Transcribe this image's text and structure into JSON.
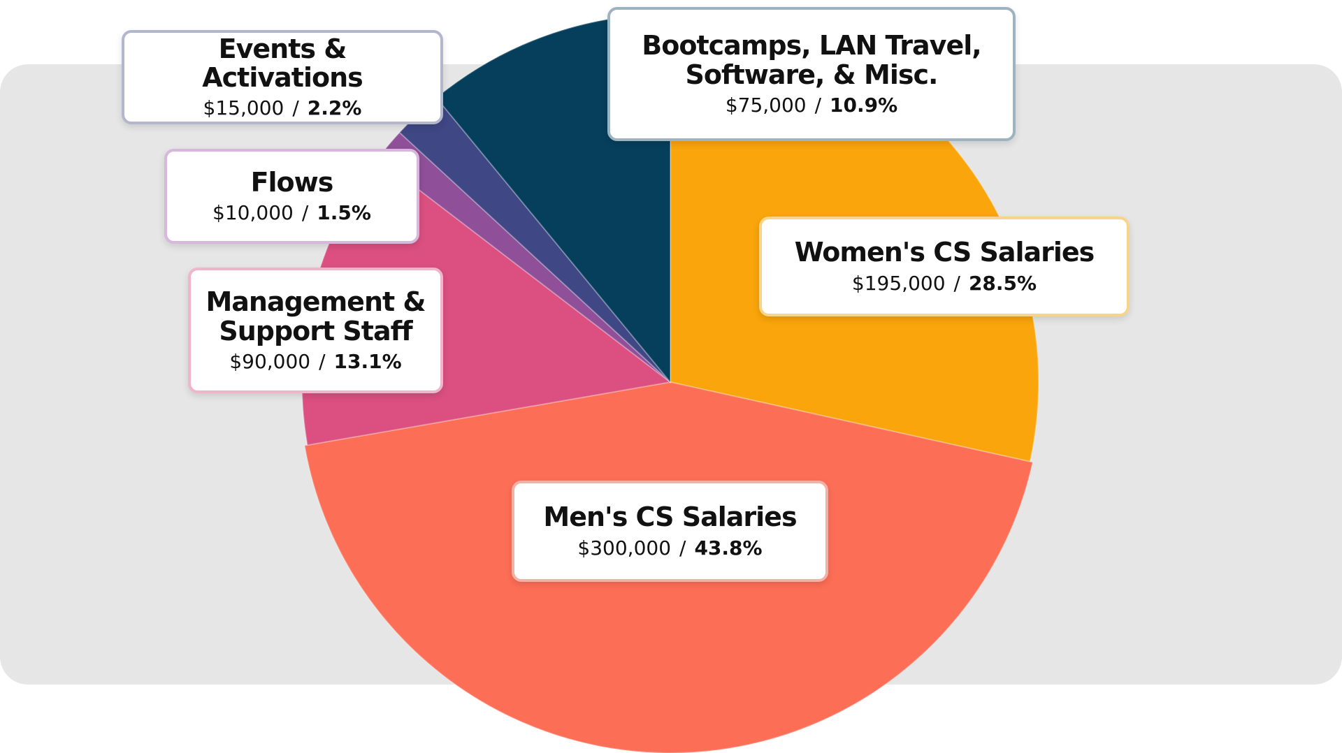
{
  "chart_data": {
    "type": "pie",
    "categories": [
      "Women's CS Salaries",
      "Men's CS Salaries",
      "Management & Support Staff",
      "Flows",
      "Events & Activations",
      "Bootcamps, LAN Travel, Software, & Misc."
    ],
    "values": [
      195000,
      300000,
      90000,
      10000,
      15000,
      75000
    ],
    "value_labels": [
      "$195,000",
      "$300,000",
      "$90,000",
      "$10,000",
      "$15,000",
      "$75,000"
    ],
    "percents": [
      28.5,
      43.8,
      13.1,
      1.5,
      2.2,
      10.9
    ],
    "percent_labels": [
      "28.5%",
      "43.8%",
      "13.1%",
      "1.5%",
      "2.2%",
      "10.9%"
    ],
    "label_separator": "/",
    "colors": [
      "#f9a50b",
      "#fd6e56",
      "#db5080",
      "#8f4f99",
      "#3f4784",
      "#063f5c"
    ]
  }
}
